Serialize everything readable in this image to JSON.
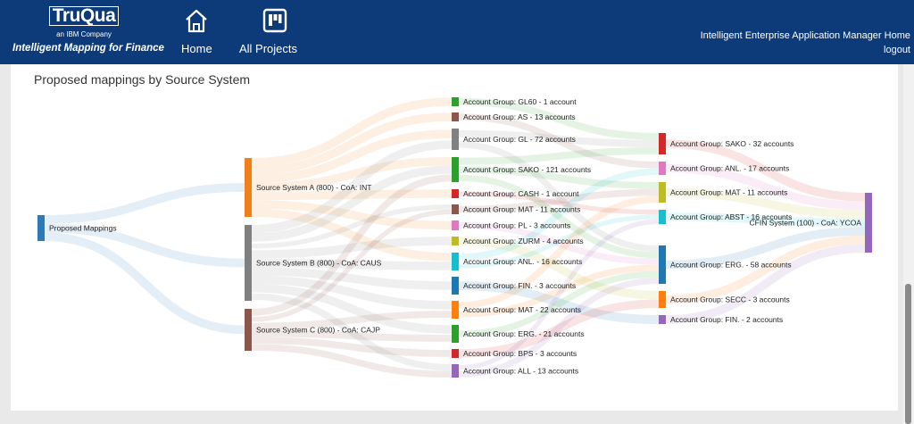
{
  "header": {
    "logo_text": "TruQua",
    "logo_sub": "an IBM Company",
    "tagline": "Intelligent Mapping for Finance",
    "nav": [
      {
        "label": "Home",
        "icon": "home-icon"
      },
      {
        "label": "All Projects",
        "icon": "projects-board-icon"
      }
    ],
    "app_home_link": "Intelligent Enterprise Application Manager Home",
    "logout_link": "logout"
  },
  "page": {
    "title": "Proposed mappings by Source System"
  },
  "chart_data": {
    "type": "sankey",
    "columns": [
      [
        {
          "id": "root",
          "label": "Proposed Mappings",
          "color": "#2b7bba"
        }
      ],
      [
        {
          "id": "sa",
          "label": "Source System A (800) - CoA: INT",
          "color": "#f28018"
        },
        {
          "id": "sb",
          "label": "Source System B (800) - CoA: CAUS",
          "color": "#808080"
        },
        {
          "id": "sc",
          "label": "Source System C (800) - CoA: CAJP",
          "color": "#8c564b"
        }
      ],
      [
        {
          "id": "m1",
          "label": "Account Group: GL60 - 1 account",
          "color": "#2ca02c"
        },
        {
          "id": "m2",
          "label": "Account Group: AS - 13 accounts",
          "color": "#8c564b"
        },
        {
          "id": "m3",
          "label": "Account Group: GL - 72 accounts",
          "color": "#808080"
        },
        {
          "id": "m4",
          "label": "Account Group: SAKO - 121 accounts",
          "color": "#2ca02c"
        },
        {
          "id": "m5",
          "label": "Account Group: CASH - 1 account",
          "color": "#d62728"
        },
        {
          "id": "m6",
          "label": "Account Group: MAT - 11 accounts",
          "color": "#8c564b"
        },
        {
          "id": "m7",
          "label": "Account Group: PL - 3 accounts",
          "color": "#e377c2"
        },
        {
          "id": "m8",
          "label": "Account Group: ZURM - 4 accounts",
          "color": "#bcbd22"
        },
        {
          "id": "m9",
          "label": "Account Group: ANL. - 16 accounts",
          "color": "#17becf"
        },
        {
          "id": "m10",
          "label": "Account Group: FIN. - 3 accounts",
          "color": "#1f77b4"
        },
        {
          "id": "m11",
          "label": "Account Group: MAT - 22 accounts",
          "color": "#ff7f0e"
        },
        {
          "id": "m12",
          "label": "Account Group: ERG. - 21 accounts",
          "color": "#2ca02c"
        },
        {
          "id": "m13",
          "label": "Account Group: BPS - 3 accounts",
          "color": "#d62728"
        },
        {
          "id": "m14",
          "label": "Account Group: ALL - 13 accounts",
          "color": "#9467bd"
        }
      ],
      [
        {
          "id": "t1",
          "label": "Account Group: SAKO - 32 accounts",
          "color": "#d62728"
        },
        {
          "id": "t2",
          "label": "Account Group: ANL. - 17 accounts",
          "color": "#e377c2"
        },
        {
          "id": "t3",
          "label": "Account Group: MAT - 11 accounts",
          "color": "#bcbd22"
        },
        {
          "id": "t4",
          "label": "Account Group: ABST - 16 accounts",
          "color": "#17becf"
        },
        {
          "id": "t5",
          "label": "Account Group: ERG. - 58 accounts",
          "color": "#1f77b4"
        },
        {
          "id": "t6",
          "label": "Account Group: SECC - 3 accounts",
          "color": "#ff7f0e"
        },
        {
          "id": "t7",
          "label": "Account Group: FIN. - 2 accounts",
          "color": "#9467bd"
        }
      ],
      [
        {
          "id": "cfin",
          "label": "CFIN System (100) - CoA: YCOA",
          "color": "#9467bd"
        }
      ]
    ],
    "links": [
      [
        "root",
        "sa"
      ],
      [
        "root",
        "sb"
      ],
      [
        "root",
        "sc"
      ],
      [
        "sa",
        "m1"
      ],
      [
        "sa",
        "m2"
      ],
      [
        "sa",
        "m3"
      ],
      [
        "sa",
        "m4"
      ],
      [
        "sa",
        "m5"
      ],
      [
        "sa",
        "m7"
      ],
      [
        "sa",
        "m9"
      ],
      [
        "sb",
        "m3"
      ],
      [
        "sb",
        "m4"
      ],
      [
        "sb",
        "m6"
      ],
      [
        "sb",
        "m8"
      ],
      [
        "sb",
        "m9"
      ],
      [
        "sb",
        "m10"
      ],
      [
        "sb",
        "m11"
      ],
      [
        "sb",
        "m12"
      ],
      [
        "sb",
        "m14"
      ],
      [
        "sc",
        "m4"
      ],
      [
        "sc",
        "m6"
      ],
      [
        "sc",
        "m11"
      ],
      [
        "sc",
        "m12"
      ],
      [
        "sc",
        "m13"
      ],
      [
        "sc",
        "m14"
      ],
      [
        "m1",
        "t1"
      ],
      [
        "m2",
        "t2"
      ],
      [
        "m3",
        "t1"
      ],
      [
        "m3",
        "t5"
      ],
      [
        "m4",
        "t1"
      ],
      [
        "m4",
        "t3"
      ],
      [
        "m4",
        "t5"
      ],
      [
        "m5",
        "t4"
      ],
      [
        "m6",
        "t3"
      ],
      [
        "m7",
        "t5"
      ],
      [
        "m8",
        "t6"
      ],
      [
        "m9",
        "t2"
      ],
      [
        "m9",
        "t4"
      ],
      [
        "m10",
        "t7"
      ],
      [
        "m11",
        "t3"
      ],
      [
        "m11",
        "t5"
      ],
      [
        "m12",
        "t5"
      ],
      [
        "m13",
        "t6"
      ],
      [
        "m14",
        "t4"
      ],
      [
        "m14",
        "t5"
      ],
      [
        "t1",
        "cfin"
      ],
      [
        "t2",
        "cfin"
      ],
      [
        "t3",
        "cfin"
      ],
      [
        "t4",
        "cfin"
      ],
      [
        "t5",
        "cfin"
      ],
      [
        "t6",
        "cfin"
      ],
      [
        "t7",
        "cfin"
      ]
    ]
  }
}
